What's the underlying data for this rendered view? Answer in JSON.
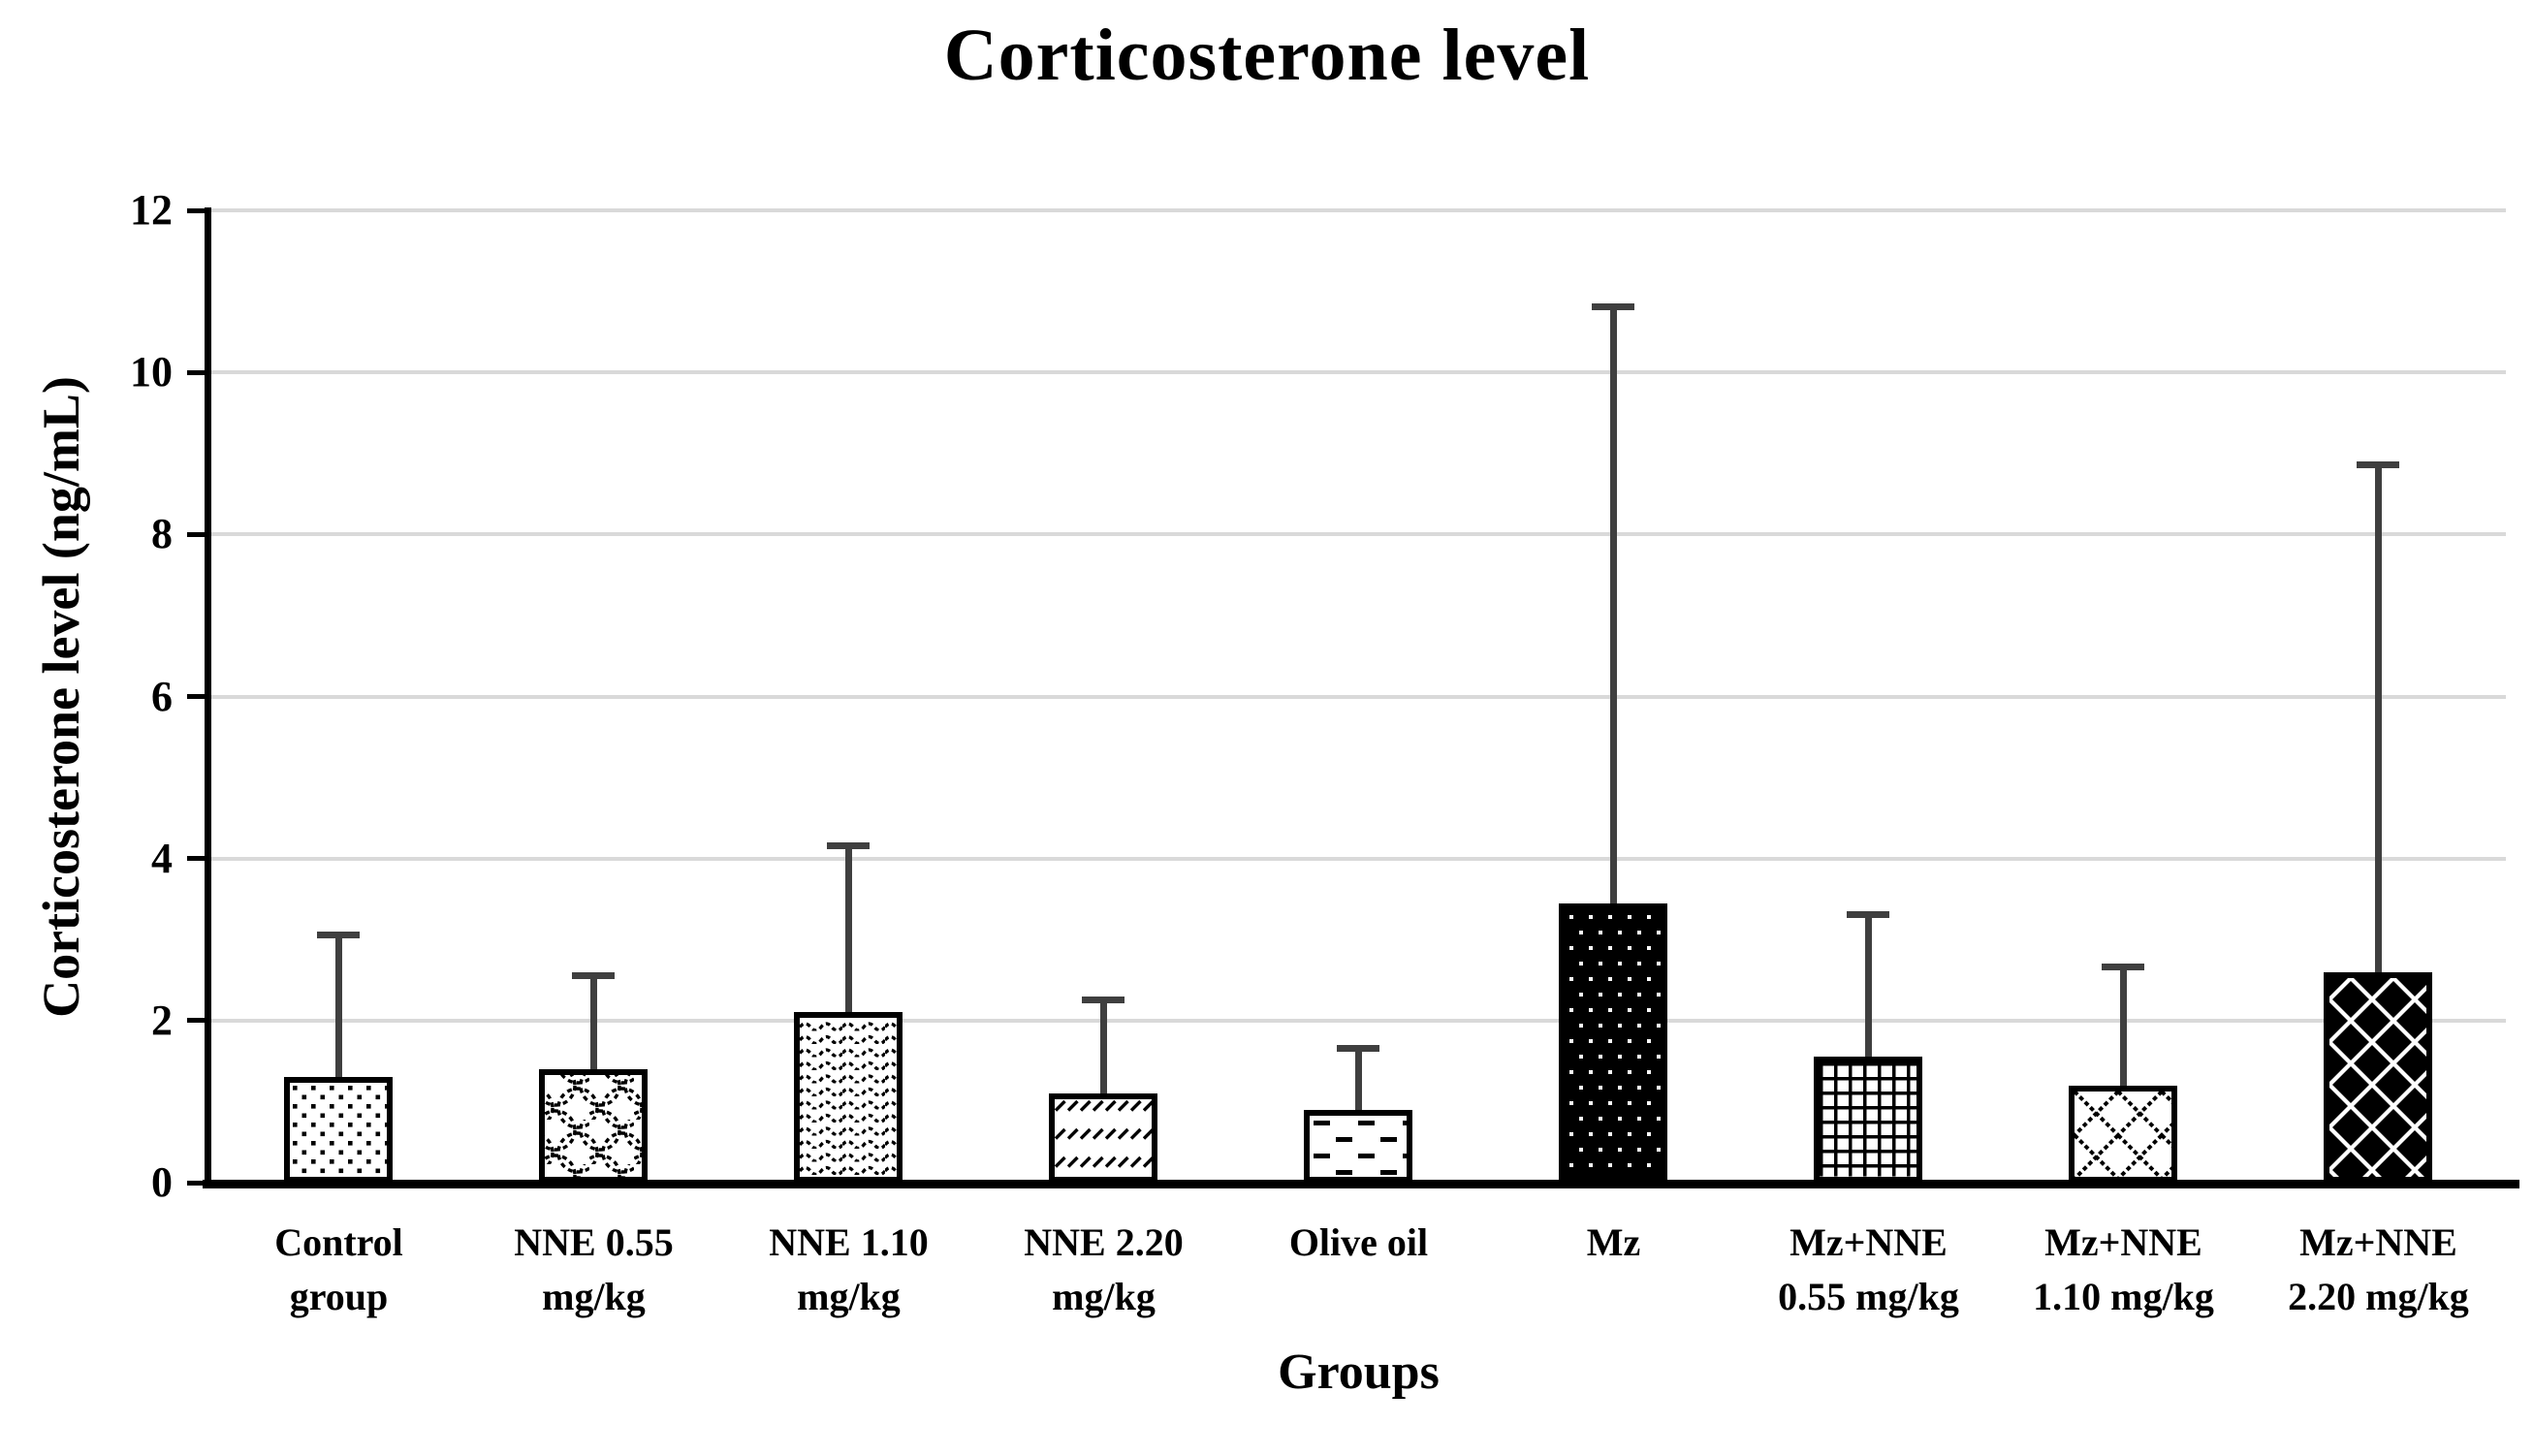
{
  "title": "Corticosterone level",
  "y_axis": {
    "label": "Corticosterone level (ng/mL)"
  },
  "x_axis": {
    "label": "Groups"
  },
  "colors": {
    "bar_border": "#000000",
    "bar_background": "#ffffff",
    "error_bar": "#3f3f3f",
    "gridline": "#d9d9d9",
    "axis": "#000000",
    "text": "#000000"
  },
  "chart_data": {
    "type": "bar",
    "title": "Corticosterone level",
    "xlabel": "Groups",
    "ylabel": "Corticosterone level (ng/mL)",
    "ylim": [
      0,
      12
    ],
    "yticks": [
      0,
      2,
      4,
      6,
      8,
      10,
      12
    ],
    "grid": true,
    "legend_position": "none",
    "categories": [
      "Control group",
      "NNE 0.55 mg/kg",
      "NNE 1.10 mg/kg",
      "NNE 2.20 mg/kg",
      "Olive oil",
      "Mz",
      "Mz+NNE 0.55 mg/kg",
      "Mz+NNE 1.10 mg/kg",
      "Mz+NNE 2.20 mg/kg"
    ],
    "category_label_lines": [
      [
        "Control",
        "group"
      ],
      [
        "NNE 0.55",
        "mg/kg"
      ],
      [
        "NNE 1.10",
        "mg/kg"
      ],
      [
        "NNE 2.20",
        "mg/kg"
      ],
      [
        "Olive oil"
      ],
      [
        "Mz"
      ],
      [
        "Mz+NNE",
        "0.55 mg/kg"
      ],
      [
        "Mz+NNE",
        "1.10 mg/kg"
      ],
      [
        "Mz+NNE",
        "2.20 mg/kg"
      ]
    ],
    "values": [
      1.3,
      1.4,
      2.1,
      1.1,
      0.9,
      3.45,
      1.55,
      1.2,
      2.6
    ],
    "error_bar_tops": [
      3.1,
      2.6,
      4.2,
      2.3,
      1.7,
      10.85,
      3.35,
      2.7,
      8.9
    ],
    "bar_patterns": [
      "small-dots",
      "scales",
      "waves",
      "diagonal-dashes",
      "horizontal-dashes",
      "white-dots-on-black",
      "grid",
      "diamond-lattice",
      "solid-diamonds"
    ]
  }
}
